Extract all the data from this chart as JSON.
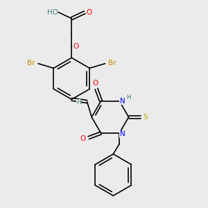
{
  "bg_color": "#ebebeb",
  "bond_color": "#000000",
  "bond_width": 1.2,
  "atom_colors": {
    "O": "#ff0000",
    "N": "#0000ff",
    "S": "#bbaa00",
    "Br": "#cc8800",
    "H": "#408080",
    "C": "#000000"
  },
  "font_size_atom": 7.5,
  "font_size_small": 6.5
}
